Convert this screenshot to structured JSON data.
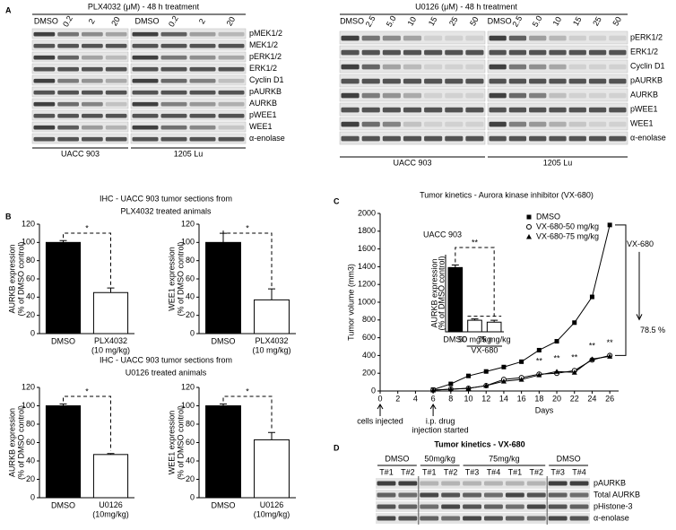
{
  "panel_labels": [
    "A",
    "B",
    "C",
    "D"
  ],
  "panel_a": {
    "left": {
      "title": "PLX4032 (μM) - 48 h treatment",
      "lanes": [
        "DMSO",
        "0.2",
        "2",
        "20",
        "DMSO",
        "0.2",
        "2",
        "20"
      ],
      "rows": [
        "pMEK1/2",
        "MEK1/2",
        "pERK1/2",
        "ERK1/2",
        "Cyclin D1",
        "pAURKB",
        "AURKB",
        "pWEE1",
        "WEE1",
        "α-enolase"
      ],
      "cell_lines": [
        "UACC 903",
        "1205 Lu"
      ]
    },
    "right": {
      "title": "U0126 (μM) - 48 h treatment",
      "lanes": [
        "DMSO",
        "2.5",
        "5.0",
        "10",
        "15",
        "25",
        "50",
        "DMSO",
        "2.5",
        "5.0",
        "10",
        "15",
        "25",
        "50"
      ],
      "rows": [
        "pERK1/2",
        "ERK1/2",
        "Cyclin D1",
        "pAURKB",
        "AURKB",
        "pWEE1",
        "WEE1",
        "α-enolase"
      ],
      "cell_lines": [
        "UACC 903",
        "1205 Lu"
      ]
    }
  },
  "panel_b": {
    "headers": [
      [
        "IHC - UACC 903  tumor sections from",
        "PLX4032 treated animals"
      ],
      [
        "IHC - UACC 903  tumor sections from",
        "U0126 treated animals"
      ]
    ]
  },
  "panel_d": {
    "title": "Tumor kinetics - VX-680",
    "groups": [
      "DMSO",
      "50mg/kg",
      "75mg/kg",
      "DMSO"
    ],
    "tumors": [
      "T#1",
      "T#2",
      "T#1",
      "T#2",
      "T#3",
      "T#4",
      "T#1",
      "T#2",
      "T#3",
      "T#4"
    ],
    "rows": [
      "pAURKB",
      "Total AURKB",
      "pHistone-3",
      "α-enolase"
    ]
  },
  "chart_data": [
    {
      "type": "bar",
      "y_label": [
        "AURKB expression",
        "(% of DMSO control)"
      ],
      "categories": [
        "DMSO",
        "PLX4032 (10 mg/kg)"
      ],
      "values": [
        100,
        45
      ],
      "errors": [
        2,
        5
      ],
      "colors": [
        "#000000",
        "#ffffff"
      ],
      "ylim": [
        0,
        120
      ],
      "yticks": [
        0,
        20,
        40,
        60,
        80,
        100,
        120
      ],
      "significance": "*"
    },
    {
      "type": "bar",
      "y_label": [
        "WEE1 expression",
        "(% of DMSO control)"
      ],
      "categories": [
        "DMSO",
        "PLX4032 (10 mg/kg)"
      ],
      "values": [
        100,
        37
      ],
      "errors": [
        10,
        12
      ],
      "colors": [
        "#000000",
        "#ffffff"
      ],
      "ylim": [
        0,
        120
      ],
      "yticks": [
        0,
        20,
        40,
        60,
        80,
        100,
        120
      ],
      "significance": "*"
    },
    {
      "type": "bar",
      "y_label": [
        "AURKB expression",
        "(% of DMSO control)"
      ],
      "categories": [
        "DMSO",
        "U0126 (10mg/kg)"
      ],
      "values": [
        100,
        47
      ],
      "errors": [
        2,
        1
      ],
      "colors": [
        "#000000",
        "#ffffff"
      ],
      "ylim": [
        0,
        120
      ],
      "yticks": [
        0,
        20,
        40,
        60,
        80,
        100,
        120
      ],
      "significance": "*"
    },
    {
      "type": "bar",
      "y_label": [
        "WEE1 expression",
        "(% of DMSO control)"
      ],
      "categories": [
        "DMSO",
        "U0126 (10mg/kg)"
      ],
      "values": [
        100,
        63
      ],
      "errors": [
        2,
        8
      ],
      "colors": [
        "#000000",
        "#ffffff"
      ],
      "ylim": [
        0,
        120
      ],
      "yticks": [
        0,
        20,
        40,
        60,
        80,
        100,
        120
      ],
      "significance": "*"
    },
    {
      "type": "line",
      "title": "Tumor kinetics - Aurora kinase inhibitor (VX-680)",
      "subtitle": "UACC 903",
      "y_label": "Tumor volume (mm3)",
      "x_label": "Days",
      "x": [
        6,
        8,
        10,
        12,
        14,
        16,
        18,
        20,
        22,
        24,
        26
      ],
      "series": [
        {
          "name": "DMSO",
          "color": "#000000",
          "marker": "square",
          "values": [
            15,
            80,
            170,
            220,
            270,
            330,
            460,
            560,
            770,
            1060,
            1870
          ]
        },
        {
          "name": "VX-680-50 mg/kg",
          "color": "#000000",
          "marker": "circle",
          "values": [
            10,
            20,
            30,
            60,
            130,
            150,
            190,
            200,
            230,
            350,
            400
          ]
        },
        {
          "name": "VX-680-75 mg/kg",
          "color": "#000000",
          "marker": "triangle",
          "values": [
            10,
            20,
            30,
            60,
            110,
            130,
            180,
            220,
            210,
            360,
            390
          ]
        }
      ],
      "xlim": [
        0,
        27
      ],
      "xticks": [
        0,
        2,
        4,
        6,
        8,
        10,
        12,
        14,
        16,
        18,
        20,
        22,
        24,
        26
      ],
      "ylim": [
        0,
        2000
      ],
      "yticks": [
        0,
        200,
        400,
        600,
        800,
        1000,
        1200,
        1400,
        1600,
        1800,
        2000
      ],
      "legend": "upper right",
      "annotations": [
        {
          "text": "**",
          "x": 18
        },
        {
          "text": "**",
          "x": 20
        },
        {
          "text": "**",
          "x": 22
        },
        {
          "text": "**",
          "x": 24
        },
        {
          "text": "**",
          "x": 26
        }
      ],
      "bracket_label": "VX-680",
      "reduction": "78.5 %",
      "events": [
        {
          "text": [
            "cells injected"
          ],
          "x": 0
        },
        {
          "text": [
            "i.p. drug",
            "injection started"
          ],
          "x": 6
        }
      ]
    },
    {
      "type": "bar",
      "y_label": [
        "AURKB expression",
        "(% of DMSO control)"
      ],
      "categories": [
        "DMSO",
        "50 mg/kg",
        "75 mg/kg"
      ],
      "values": [
        100,
        18,
        15
      ],
      "errors": [
        4,
        2,
        3
      ],
      "colors": [
        "#000000",
        "#ffffff",
        "#ffffff"
      ],
      "ylim": [
        0,
        120
      ],
      "significance": "**",
      "group_label": "VX-680"
    }
  ]
}
